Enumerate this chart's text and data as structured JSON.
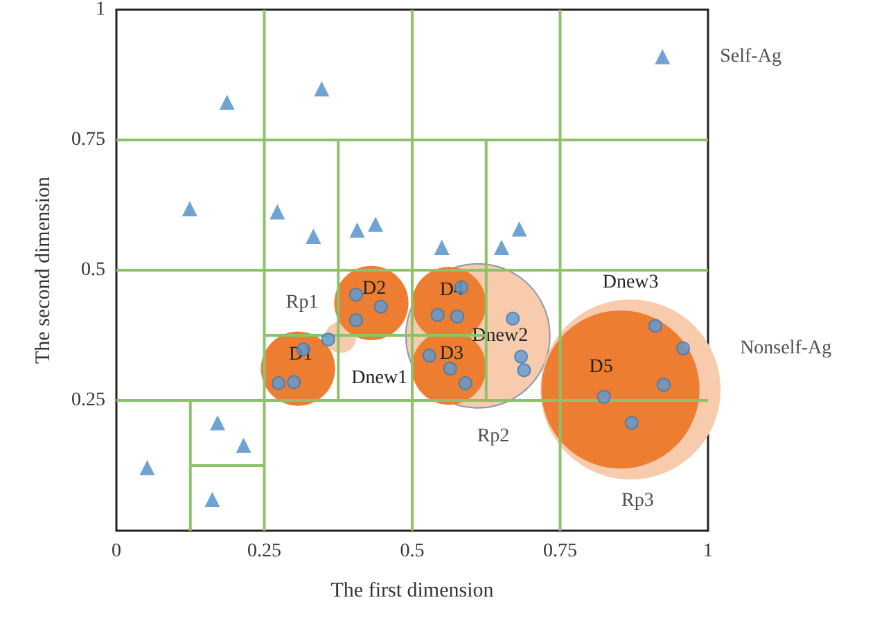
{
  "chart_data": {
    "type": "scatter",
    "xlabel": "The first dimension",
    "ylabel": "The second dimension",
    "xlim": [
      0,
      1
    ],
    "ylim": [
      0,
      1
    ],
    "xticks": [
      0,
      0.25,
      0.5,
      0.75,
      1
    ],
    "yticks": [
      0.25,
      0.5,
      0.75,
      1
    ],
    "grid": false,
    "legend": false,
    "annotations": [
      "Rp1",
      "Rp2",
      "Rp3"
    ],
    "series": [
      {
        "type": "line",
        "color": "#8dc26a",
        "marker": "none",
        "x": [
          0.25,
          0.25
        ],
        "values": [
          0,
          1
        ]
      },
      {
        "type": "line",
        "color": "#8dc26a",
        "marker": "none",
        "x": [
          0.5,
          0.5
        ],
        "values": [
          0,
          1
        ]
      },
      {
        "type": "line",
        "color": "#8dc26a",
        "marker": "none",
        "x": [
          0.75,
          0.75
        ],
        "values": [
          0,
          1
        ]
      },
      {
        "type": "line",
        "color": "#8dc26a",
        "marker": "none",
        "x": [
          0,
          1
        ],
        "values": [
          0.25,
          0.25
        ]
      },
      {
        "type": "line",
        "color": "#8dc26a",
        "marker": "none",
        "x": [
          0,
          1
        ],
        "values": [
          0.5,
          0.5
        ]
      },
      {
        "type": "line",
        "color": "#8dc26a",
        "marker": "none",
        "x": [
          0,
          1
        ],
        "values": [
          0.75,
          0.75
        ]
      },
      {
        "type": "line",
        "color": "#8dc26a",
        "marker": "none",
        "x": [
          0.375,
          0.375
        ],
        "values": [
          0.25,
          0.75
        ]
      },
      {
        "type": "line",
        "color": "#8dc26a",
        "marker": "none",
        "x": [
          0.625,
          0.625
        ],
        "values": [
          0.25,
          0.75
        ]
      },
      {
        "type": "line",
        "color": "#8dc26a",
        "marker": "none",
        "x": [
          0.25,
          0.625
        ],
        "values": [
          0.375,
          0.375
        ]
      },
      {
        "type": "line",
        "color": "#8dc26a",
        "marker": "none",
        "x": [
          0.125,
          0.125
        ],
        "values": [
          0,
          0.25
        ]
      },
      {
        "type": "line",
        "color": "#8dc26a",
        "marker": "none",
        "x": [
          0.125,
          0.25
        ],
        "values": [
          0.125,
          0.125
        ]
      },
      {
        "type": "bubble",
        "color": "#f8cbad",
        "x": [
          0.379,
          0.611,
          0.869
        ],
        "values": [
          0.371,
          0.374,
          0.271
        ],
        "sizes": [
          0.03,
          0.64,
          1
        ],
        "value_labels": [
          "Dnew1",
          "Dnew2",
          "Dnew3"
        ]
      },
      {
        "type": "bubble",
        "color": "#ed7d31",
        "x": [
          0.307,
          0.431,
          0.562,
          0.562,
          0.852
        ],
        "values": [
          0.311,
          0.437,
          0.313,
          0.435,
          0.271
        ],
        "sizes": [
          0.17,
          0.17,
          0.17,
          0.17,
          0.77
        ],
        "value_labels": [
          "D1",
          "D2",
          "D3",
          "D4",
          "D5"
        ]
      },
      {
        "name": "Self-Ag",
        "color": "#4a8cc8",
        "marker": "triangle",
        "x": [
          0.923,
          0.187,
          0.347,
          0.124,
          0.272,
          0.333,
          0.407,
          0.438,
          0.55,
          0.651,
          0.681,
          0.052,
          0.171,
          0.215,
          0.162
        ],
        "values": [
          0.91,
          0.822,
          0.848,
          0.618,
          0.612,
          0.565,
          0.577,
          0.588,
          0.544,
          0.544,
          0.579,
          0.121,
          0.207,
          0.164,
          0.06
        ]
      },
      {
        "name": "Nonself-Ag",
        "color": "#5b9bd5",
        "marker": "circle",
        "x": [
          0.316,
          0.3,
          0.274,
          0.358,
          0.405,
          0.447,
          0.405,
          0.583,
          0.543,
          0.576,
          0.529,
          0.564,
          0.59,
          0.67,
          0.684,
          0.689,
          0.911,
          0.958,
          0.824,
          0.925,
          0.871
        ],
        "values": [
          0.348,
          0.285,
          0.283,
          0.367,
          0.453,
          0.43,
          0.404,
          0.467,
          0.414,
          0.411,
          0.336,
          0.311,
          0.283,
          0.407,
          0.334,
          0.308,
          0.393,
          0.35,
          0.257,
          0.28,
          0.207
        ]
      }
    ]
  }
}
